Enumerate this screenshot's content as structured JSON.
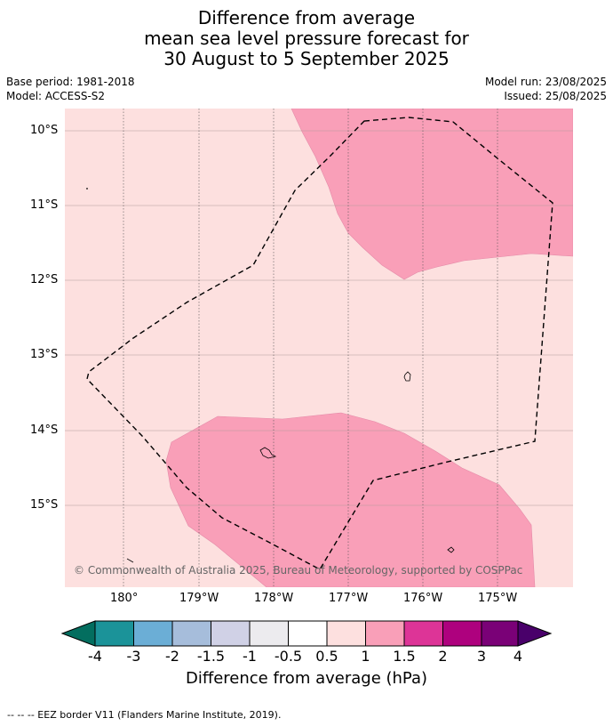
{
  "title": {
    "line1": "Difference from average",
    "line2": "mean sea level pressure forecast for",
    "line3": "30 August to 5 September 2025"
  },
  "meta": {
    "base_period": "Base period: 1981-2018",
    "model": "Model: ACCESS-S2",
    "model_run": "Model run: 23/08/2025",
    "issued": "Issued: 25/08/2025"
  },
  "map": {
    "lat_labels": [
      "10°S",
      "11°S",
      "12°S",
      "13°S",
      "14°S",
      "15°S"
    ],
    "lon_labels": [
      "180°",
      "179°W",
      "178°W",
      "177°W",
      "176°W",
      "175°W"
    ],
    "copyright": "© Commonwealth of Australia 2025, Bureau of Meteorology, supported by COSPPac",
    "colors": {
      "background_fill": "#fde0df",
      "anomaly_fill": "#f99fb8",
      "grid": "#999999"
    }
  },
  "colorbar": {
    "labels": [
      "-4",
      "-3",
      "-2",
      "-1.5",
      "-1",
      "-0.5",
      "0.5",
      "1",
      "1.5",
      "2",
      "3",
      "4"
    ],
    "colors": [
      "#036e5f",
      "#1b9399",
      "#6baed6",
      "#a6bddb",
      "#d0d1e6",
      "#ecebee",
      "#ffffff",
      "#fde0df",
      "#f99fb8",
      "#dd3497",
      "#ae017e",
      "#7a0177",
      "#49006a"
    ],
    "title": "Difference from average (hPa)"
  },
  "footer": {
    "legend_text": "--  --  -- EEZ border V11 (Flanders Marine Institute, 2019)."
  }
}
